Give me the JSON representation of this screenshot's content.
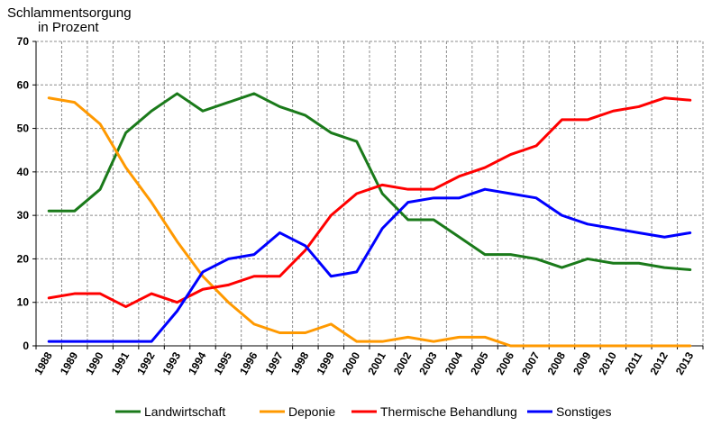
{
  "chart_data": {
    "type": "line",
    "title": "",
    "ylabel": [
      "Schlammentsorgung",
      "in Prozent"
    ],
    "xlabel": "",
    "ylim": [
      0,
      70
    ],
    "yticks": [
      0,
      10,
      20,
      30,
      40,
      50,
      60,
      70
    ],
    "grid": true,
    "legend_position": "bottom",
    "categories": [
      "1988",
      "1989",
      "1990",
      "1991",
      "1992",
      "1993",
      "1994",
      "1995",
      "1996",
      "1997",
      "1998",
      "1999",
      "2000",
      "2001",
      "2002",
      "2003",
      "2004",
      "2005",
      "2006",
      "2007",
      "2008",
      "2009",
      "2010",
      "2011",
      "2012",
      "2013"
    ],
    "series": [
      {
        "name": "Landwirtschaft",
        "color": "#1a7a1a",
        "values": [
          31,
          31,
          36,
          49,
          54,
          58,
          54,
          56,
          58,
          55,
          53,
          49,
          47,
          35,
          29,
          29,
          25,
          21,
          21,
          20,
          18,
          20,
          19,
          19,
          18,
          17.5
        ]
      },
      {
        "name": "Deponie",
        "color": "#ff9900",
        "values": [
          57,
          56,
          51,
          41,
          33,
          24,
          16,
          10,
          5,
          3,
          3,
          5,
          1,
          1,
          2,
          1,
          2,
          2,
          0,
          0,
          0,
          0,
          0,
          0,
          0,
          0
        ]
      },
      {
        "name": "Thermische Behandlung",
        "color": "#ff0000",
        "values": [
          11,
          12,
          12,
          9,
          12,
          10,
          13,
          14,
          16,
          16,
          22,
          30,
          35,
          37,
          36,
          36,
          39,
          41,
          44,
          46,
          52,
          52,
          54,
          55,
          57,
          56.5
        ]
      },
      {
        "name": "Sonstiges",
        "color": "#0000ff",
        "values": [
          1,
          1,
          1,
          1,
          1,
          8,
          17,
          20,
          21,
          26,
          23,
          16,
          17,
          27,
          33,
          34,
          34,
          36,
          35,
          34,
          30,
          28,
          27,
          26,
          25,
          26
        ]
      }
    ]
  }
}
